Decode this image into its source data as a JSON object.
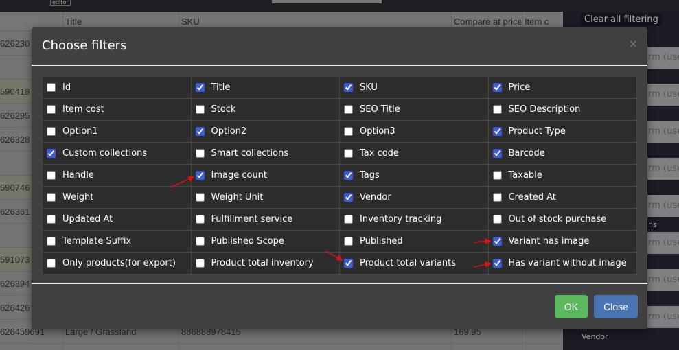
{
  "topbar": {
    "editor_label": "editor"
  },
  "grid": {
    "headers": [
      "Title",
      "SKU",
      "Compare at price",
      "Item c"
    ],
    "rows": [
      {
        "id": "626230",
        "title": "",
        "sku": "",
        "price": ""
      },
      {
        "id": "",
        "title": "",
        "sku": "",
        "price": ""
      },
      {
        "id": "590418",
        "title": "",
        "sku": "",
        "price": ""
      },
      {
        "id": "626295",
        "title": "",
        "sku": "",
        "price": ""
      },
      {
        "id": "626328",
        "title": "",
        "sku": "",
        "price": ""
      },
      {
        "id": "",
        "title": "",
        "sku": "",
        "price": ""
      },
      {
        "id": "590746",
        "title": "",
        "sku": "",
        "price": ""
      },
      {
        "id": "626361",
        "title": "",
        "sku": "",
        "price": ""
      },
      {
        "id": "",
        "title": "",
        "sku": "",
        "price": ""
      },
      {
        "id": "591073",
        "title": "",
        "sku": "",
        "price": ""
      },
      {
        "id": "626394",
        "title": "",
        "sku": "",
        "price": ""
      },
      {
        "id": "626426",
        "title": "",
        "sku": "",
        "price": ""
      },
      {
        "id": "626459691",
        "title": "Large / Grassland",
        "sku": "886888978415",
        "price": "169.95"
      }
    ]
  },
  "side": {
    "clear_label": "Clear all filtering",
    "input_placeholder": "rm (use",
    "section_label": "ns",
    "vendor_label": "Vendor"
  },
  "modal": {
    "title": "Choose filters",
    "close_icon": "×",
    "ok_label": "OK",
    "close_label": "Close",
    "filters": [
      [
        {
          "label": "Id",
          "checked": false
        },
        {
          "label": "Title",
          "checked": true
        },
        {
          "label": "SKU",
          "checked": true
        },
        {
          "label": "Price",
          "checked": true
        }
      ],
      [
        {
          "label": "Item cost",
          "checked": false
        },
        {
          "label": "Stock",
          "checked": false
        },
        {
          "label": "SEO Title",
          "checked": false
        },
        {
          "label": "SEO Description",
          "checked": false
        }
      ],
      [
        {
          "label": "Option1",
          "checked": false
        },
        {
          "label": "Option2",
          "checked": true
        },
        {
          "label": "Option3",
          "checked": false
        },
        {
          "label": "Product Type",
          "checked": true
        }
      ],
      [
        {
          "label": "Custom collections",
          "checked": true
        },
        {
          "label": "Smart collections",
          "checked": false
        },
        {
          "label": "Tax code",
          "checked": false
        },
        {
          "label": "Barcode",
          "checked": true
        }
      ],
      [
        {
          "label": "Handle",
          "checked": false
        },
        {
          "label": "Image count",
          "checked": true
        },
        {
          "label": "Tags",
          "checked": true
        },
        {
          "label": "Taxable",
          "checked": false
        }
      ],
      [
        {
          "label": "Weight",
          "checked": false
        },
        {
          "label": "Weight Unit",
          "checked": false
        },
        {
          "label": "Vendor",
          "checked": true
        },
        {
          "label": "Created At",
          "checked": false
        }
      ],
      [
        {
          "label": "Updated At",
          "checked": false
        },
        {
          "label": "Fulfillment service",
          "checked": false
        },
        {
          "label": "Inventory tracking",
          "checked": false
        },
        {
          "label": "Out of stock purchase",
          "checked": false
        }
      ],
      [
        {
          "label": "Template Suffix",
          "checked": false
        },
        {
          "label": "Published Scope",
          "checked": false
        },
        {
          "label": "Published",
          "checked": false
        },
        {
          "label": "Variant has image",
          "checked": true
        }
      ],
      [
        {
          "label": "Only products(for export)",
          "checked": false
        },
        {
          "label": "Product total inventory",
          "checked": false
        },
        {
          "label": "Product total variants",
          "checked": true
        },
        {
          "label": "Has variant without image",
          "checked": true
        }
      ]
    ]
  },
  "colors": {
    "ok": "#5cb85c",
    "close": "#4a74b4",
    "arrow": "#e01010",
    "checkbox": "#3b5bdb"
  }
}
